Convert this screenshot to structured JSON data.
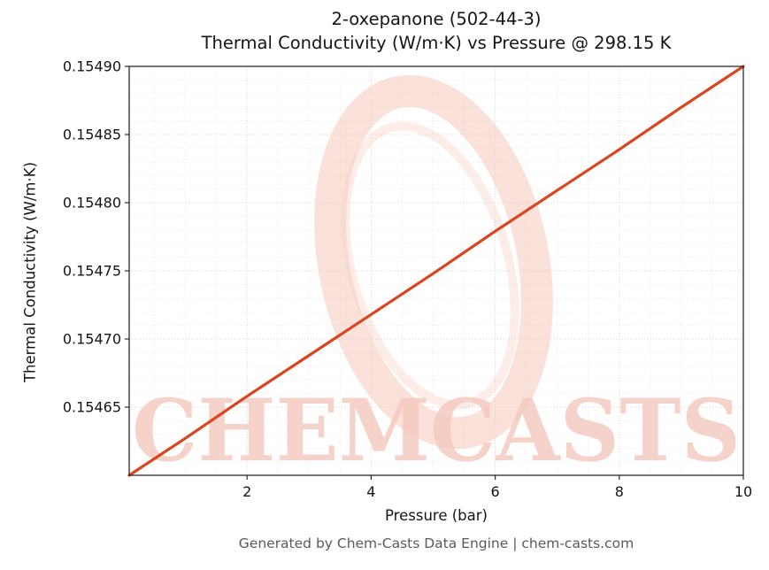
{
  "title_line1": "2-oxepanone (502-44-3)",
  "title_line2": "Thermal Conductivity (W/m·K) vs Pressure @ 298.15 K",
  "footer": "Generated by Chem-Casts Data Engine | chem-casts.com",
  "watermark": {
    "text": "CHEMCASTS",
    "text_color": "#f5c9be",
    "ring_color": "#f6cabe"
  },
  "chart_data": {
    "type": "line",
    "title": "2-oxepanone (502-44-3) — Thermal Conductivity (W/m·K) vs Pressure @ 298.15 K",
    "xlabel": "Pressure (bar)",
    "ylabel": "Thermal Conductivity (W/m·K)",
    "xlim": [
      0.1,
      10
    ],
    "ylim": [
      0.1546,
      0.1549
    ],
    "x_ticks": [
      2,
      4,
      6,
      8,
      10
    ],
    "y_ticks": [
      0.15465,
      0.1547,
      0.15475,
      0.1548,
      0.15485,
      0.1549
    ],
    "grid": true,
    "legend_position": "none",
    "series": [
      {
        "name": "thermal-conductivity-vs-pressure",
        "color": "#d9451c",
        "x": [
          0.1,
          1,
          2,
          3,
          4,
          5,
          6,
          7,
          8,
          9,
          10
        ],
        "y": [
          0.1546,
          0.154627,
          0.154658,
          0.154688,
          0.154718,
          0.154748,
          0.154779,
          0.154809,
          0.154839,
          0.15487,
          0.1549
        ]
      }
    ]
  }
}
